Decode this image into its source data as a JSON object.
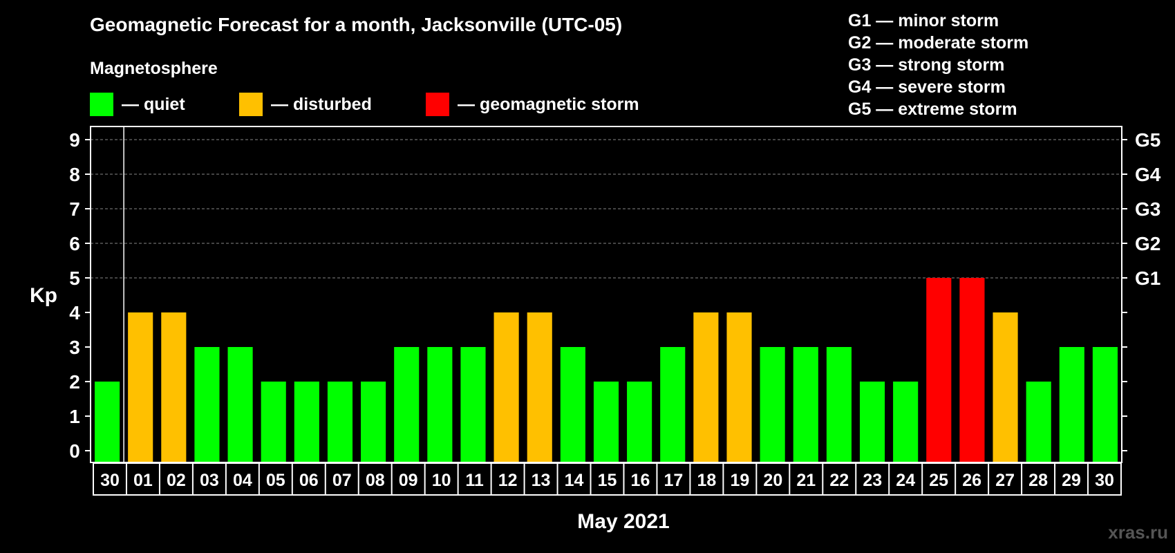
{
  "chart_data": {
    "type": "bar",
    "title": "Geomagnetic Forecast for a month, Jacksonville (UTC-05)",
    "subtitle": "Magnetosphere",
    "xlabel": "May 2021",
    "ylabel": "Kp",
    "ylim": [
      0,
      9
    ],
    "yticks": [
      "0",
      "1",
      "2",
      "3",
      "4",
      "5",
      "6",
      "7",
      "8",
      "9"
    ],
    "right_axis_labels": [
      {
        "kp": 5,
        "label": "G1"
      },
      {
        "kp": 6,
        "label": "G2"
      },
      {
        "kp": 7,
        "label": "G3"
      },
      {
        "kp": 8,
        "label": "G4"
      },
      {
        "kp": 9,
        "label": "G5"
      }
    ],
    "categories": [
      "30",
      "01",
      "02",
      "03",
      "04",
      "05",
      "06",
      "07",
      "08",
      "09",
      "10",
      "11",
      "12",
      "13",
      "14",
      "15",
      "16",
      "17",
      "18",
      "19",
      "20",
      "21",
      "22",
      "23",
      "24",
      "25",
      "26",
      "27",
      "28",
      "29",
      "30"
    ],
    "values": [
      2,
      4,
      4,
      3,
      3,
      2,
      2,
      2,
      2,
      3,
      3,
      3,
      4,
      4,
      3,
      2,
      2,
      3,
      4,
      4,
      3,
      3,
      3,
      2,
      2,
      5,
      5,
      4,
      2,
      3,
      3
    ],
    "legend": [
      {
        "label": "— quiet",
        "color": "#00ff00"
      },
      {
        "label": "— disturbed",
        "color": "#ffc000"
      },
      {
        "label": "— geomagnetic storm",
        "color": "#ff0000"
      }
    ],
    "storm_levels": [
      "G1 — minor storm",
      "G2 — moderate storm",
      "G3 — strong storm",
      "G4 — severe storm",
      "G5 — extreme storm"
    ],
    "colors": {
      "quiet": "#00ff00",
      "disturbed": "#ffc000",
      "storm": "#ff0000"
    }
  },
  "watermark": "xras.ru"
}
